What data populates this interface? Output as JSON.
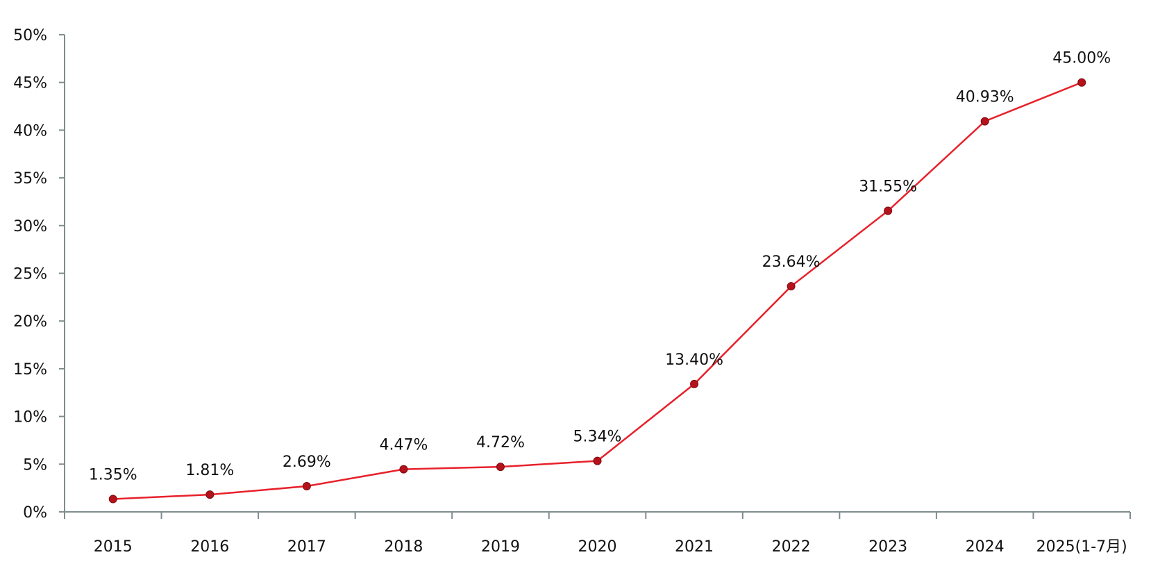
{
  "chart_data": {
    "type": "line",
    "categories": [
      "2015",
      "2016",
      "2017",
      "2018",
      "2019",
      "2020",
      "2021",
      "2022",
      "2023",
      "2024",
      "2025(1-7月)"
    ],
    "series": [
      {
        "values": [
          1.35,
          1.81,
          2.69,
          4.47,
          4.72,
          5.34,
          13.4,
          23.64,
          31.55,
          40.93,
          45.0
        ],
        "labels": [
          "1.35%",
          "1.81%",
          "2.69%",
          "4.47%",
          "4.72%",
          "5.34%",
          "13.40%",
          "23.64%",
          "31.55%",
          "40.93%",
          "45.00%"
        ]
      }
    ],
    "title": "",
    "xlabel": "",
    "ylabel": "",
    "ylim": [
      0,
      50
    ],
    "yticks": [
      0,
      5,
      10,
      15,
      20,
      25,
      30,
      35,
      40,
      45,
      50
    ],
    "ytick_labels": [
      "0%",
      "5%",
      "10%",
      "15%",
      "20%",
      "25%",
      "30%",
      "35%",
      "40%",
      "45%",
      "50%"
    ],
    "grid": false,
    "legend": "none",
    "colors": {
      "line": "#e8212b",
      "marker": "#b5121b",
      "axis": "#7f8c8d"
    }
  }
}
